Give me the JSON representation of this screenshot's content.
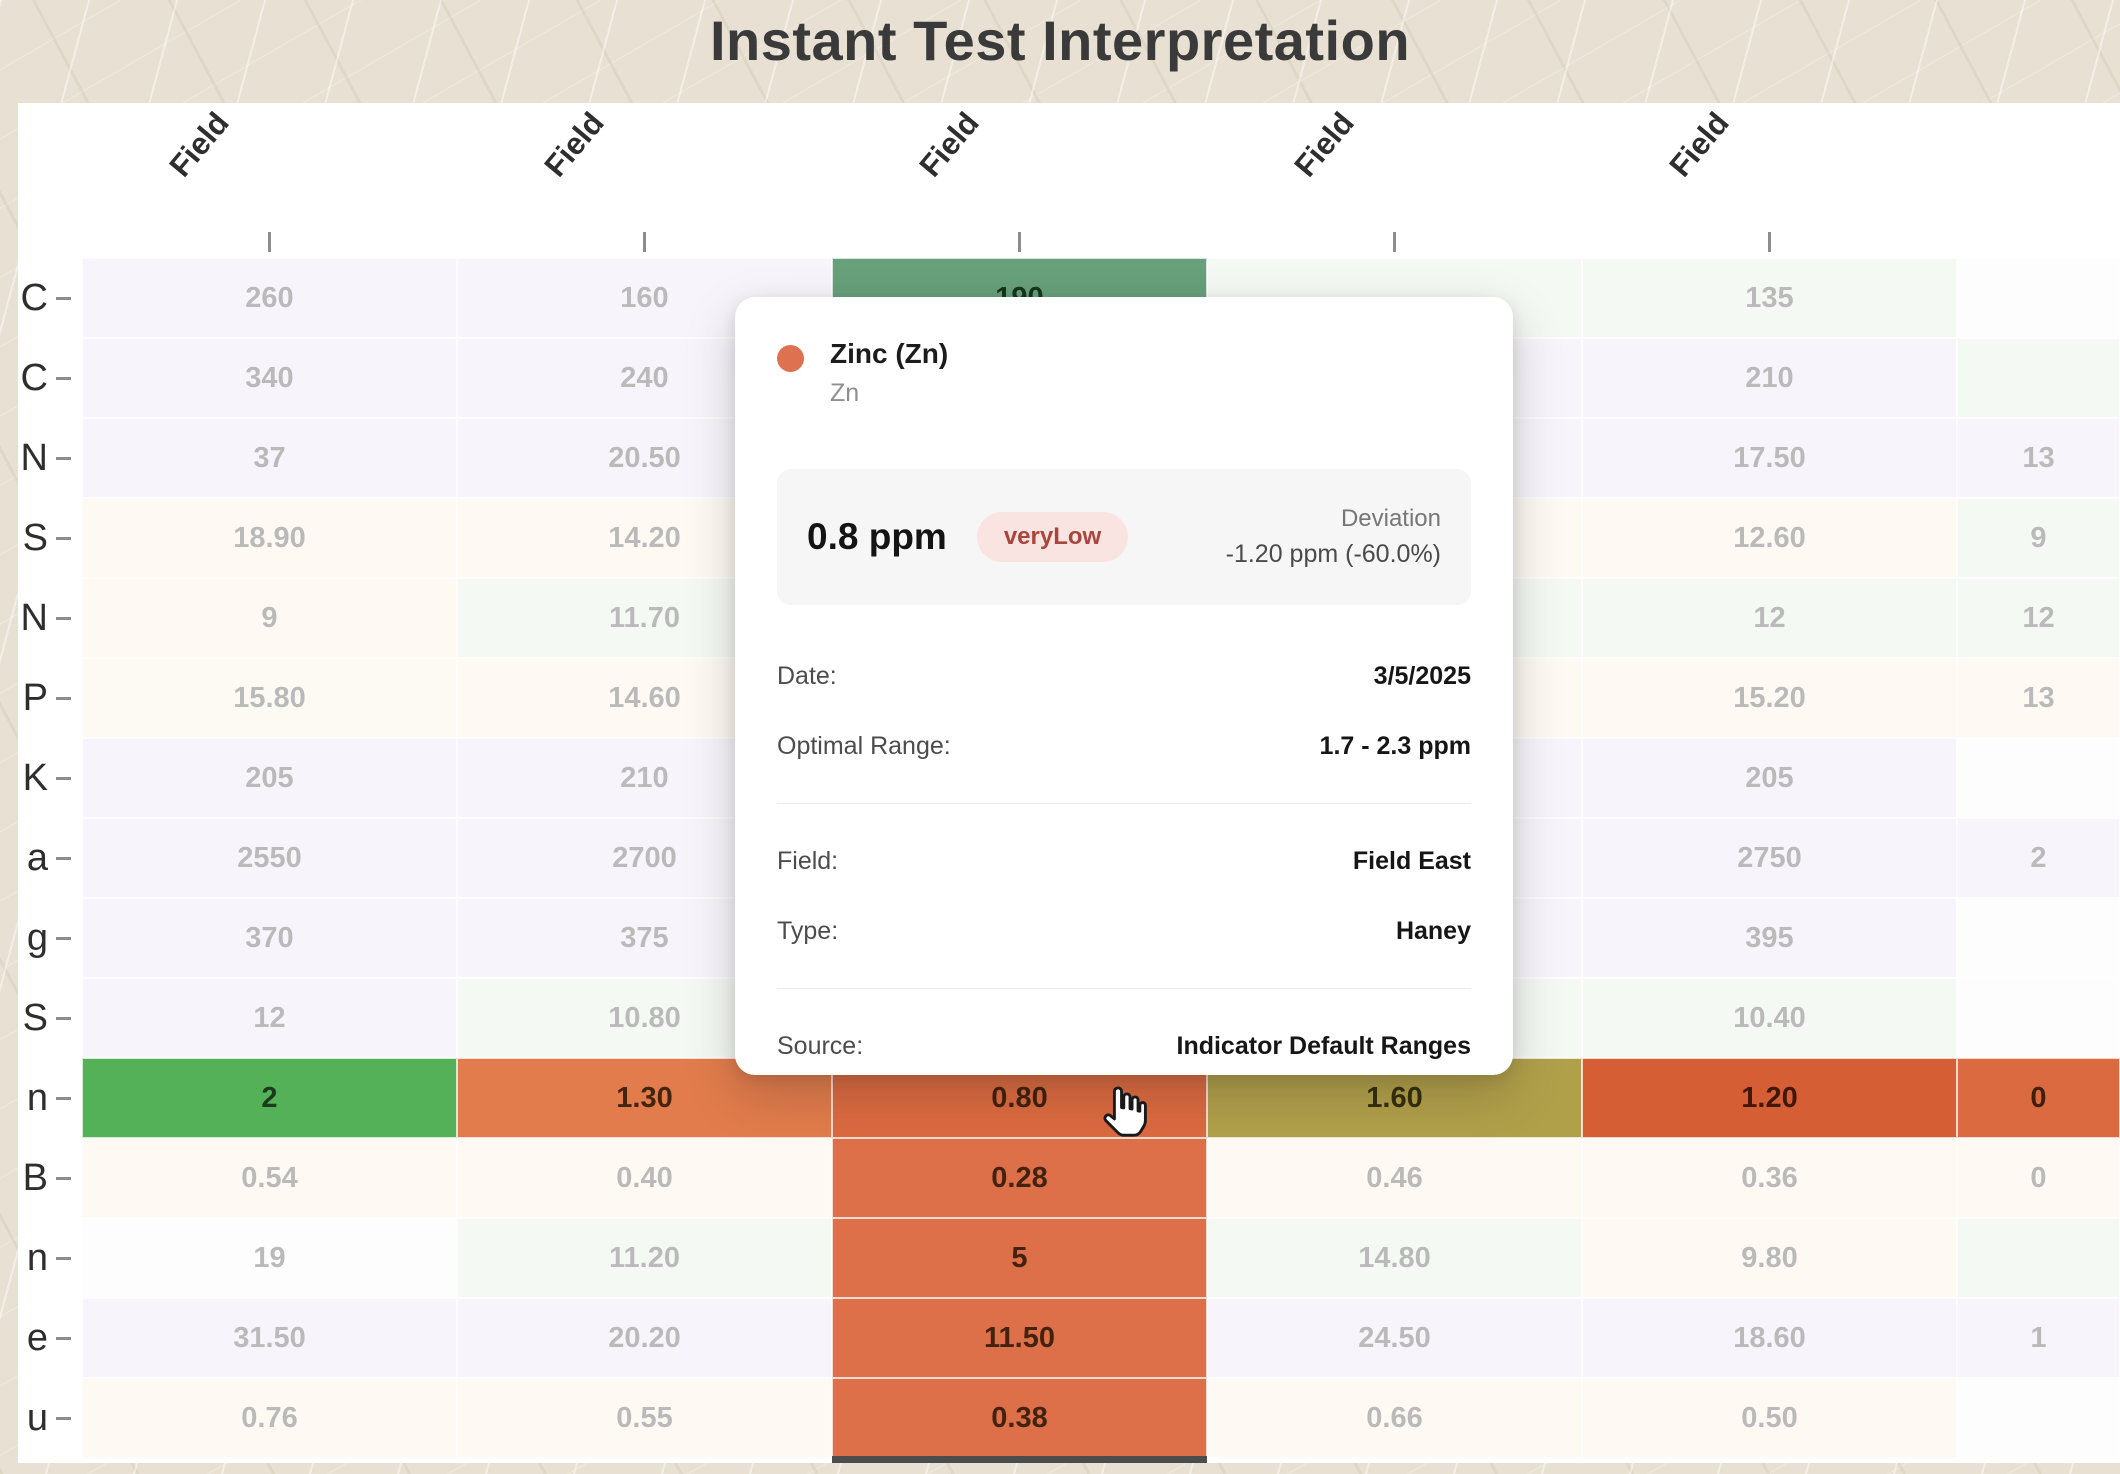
{
  "title": "Instant Test Interpretation",
  "chart_data": {
    "type": "heatmap",
    "columns": [
      "Field",
      "Field",
      "Field",
      "Field",
      "Field",
      ""
    ],
    "rows": [
      "C",
      "C",
      "N",
      "S",
      "N",
      "P",
      "K",
      "a",
      "g",
      "S",
      "n",
      "B",
      "n",
      "e",
      "u"
    ],
    "values": [
      [
        "260",
        "160",
        "190",
        "",
        "135",
        ""
      ],
      [
        "340",
        "240",
        "",
        "",
        "210",
        ""
      ],
      [
        "37",
        "20.50",
        "",
        "",
        "17.50",
        "13"
      ],
      [
        "18.90",
        "14.20",
        "",
        "",
        "12.60",
        "9"
      ],
      [
        "9",
        "11.70",
        "",
        "",
        "12",
        "12"
      ],
      [
        "15.80",
        "14.60",
        "",
        "",
        "15.20",
        "13"
      ],
      [
        "205",
        "210",
        "",
        "",
        "205",
        ""
      ],
      [
        "2550",
        "2700",
        "",
        "",
        "2750",
        "2"
      ],
      [
        "370",
        "375",
        "",
        "",
        "395",
        ""
      ],
      [
        "12",
        "10.80",
        "",
        "",
        "10.40",
        ""
      ],
      [
        "2",
        "1.30",
        "0.80",
        "1.60",
        "1.20",
        "0"
      ],
      [
        "0.54",
        "0.40",
        "0.28",
        "0.46",
        "0.36",
        "0"
      ],
      [
        "19",
        "11.20",
        "5",
        "14.80",
        "9.80",
        ""
      ],
      [
        "31.50",
        "20.20",
        "11.50",
        "24.50",
        "18.60",
        "1"
      ],
      [
        "0.76",
        "0.55",
        "0.38",
        "0.66",
        "0.50",
        ""
      ]
    ],
    "cell_colors": [
      [
        "p",
        "p",
        "hg",
        "g",
        "g",
        "w"
      ],
      [
        "p",
        "p",
        "hl",
        "p",
        "p",
        "g"
      ],
      [
        "p",
        "p",
        "hl",
        "p",
        "p",
        "p"
      ],
      [
        "o",
        "o",
        "hl",
        "o",
        "o",
        "g"
      ],
      [
        "o",
        "g",
        "hl",
        "g",
        "g",
        "g"
      ],
      [
        "c",
        "o",
        "hl",
        "o",
        "o",
        "o"
      ],
      [
        "p",
        "p",
        "hl",
        "p",
        "p",
        "w"
      ],
      [
        "p",
        "p",
        "hl",
        "p",
        "p",
        "p"
      ],
      [
        "p",
        "p",
        "hl",
        "p",
        "p",
        "w"
      ],
      [
        "p",
        "g",
        "hl",
        "g",
        "g",
        "w"
      ],
      [
        "zg",
        "zo",
        "zd",
        "zv",
        "zr",
        "zd"
      ],
      [
        "o",
        "o",
        "hl",
        "o",
        "o",
        "o"
      ],
      [
        "w",
        "g",
        "hl",
        "g",
        "o",
        "g"
      ],
      [
        "p",
        "p",
        "hl",
        "p",
        "p",
        "p"
      ],
      [
        "o",
        "o",
        "hl",
        "o",
        "o",
        "w"
      ]
    ],
    "palette": {
      "p": {
        "bg": "#eae4f6",
        "tx": "#3c3c3c"
      },
      "g": {
        "bg": "#e4efe2",
        "tx": "#3c3c3c"
      },
      "o": {
        "bg": "#fdeedf",
        "tx": "#3c3c3c"
      },
      "c": {
        "bg": "#fbf3df",
        "tx": "#3c3c3c"
      },
      "w": {
        "bg": "#fbfbfa",
        "tx": "#3c3c3c"
      },
      "hg": {
        "bg": "#67a07b",
        "tx": "#16351d"
      },
      "zg": {
        "bg": "#54b157",
        "tx": "#1d3a1d"
      },
      "zo": {
        "bg": "#e27c4c",
        "tx": "#43250f"
      },
      "zd": {
        "bg": "#dc6a40",
        "tx": "#401f0c"
      },
      "zv": {
        "bg": "#b1a04a",
        "tx": "#332d0b"
      },
      "zr": {
        "bg": "#d65e34",
        "tx": "#40180a"
      },
      "hl": {
        "bg": "#de7049",
        "tx": "#43220f"
      }
    },
    "active_row_index": 10,
    "active_col_index": 2,
    "faded_opacity": 0.35
  },
  "tooltip": {
    "indicator_color": "#dd7150",
    "title": "Zinc (Zn)",
    "subtitle": "Zn",
    "value": "0.8 ppm",
    "status": "veryLow",
    "status_bg": "#f9e4e1",
    "status_color": "#a8453c",
    "deviation_label": "Deviation",
    "deviation_value": "-1.20 ppm (-60.0%)",
    "details": [
      {
        "label": "Date:",
        "value": "3/5/2025"
      },
      {
        "label": "Optimal Range:",
        "value": "1.7 - 2.3 ppm"
      }
    ],
    "meta": [
      {
        "label": "Field:",
        "value": "Field East"
      },
      {
        "label": "Type:",
        "value": "Haney"
      }
    ],
    "source": {
      "label": "Source:",
      "value": "Indicator Default Ranges"
    }
  }
}
